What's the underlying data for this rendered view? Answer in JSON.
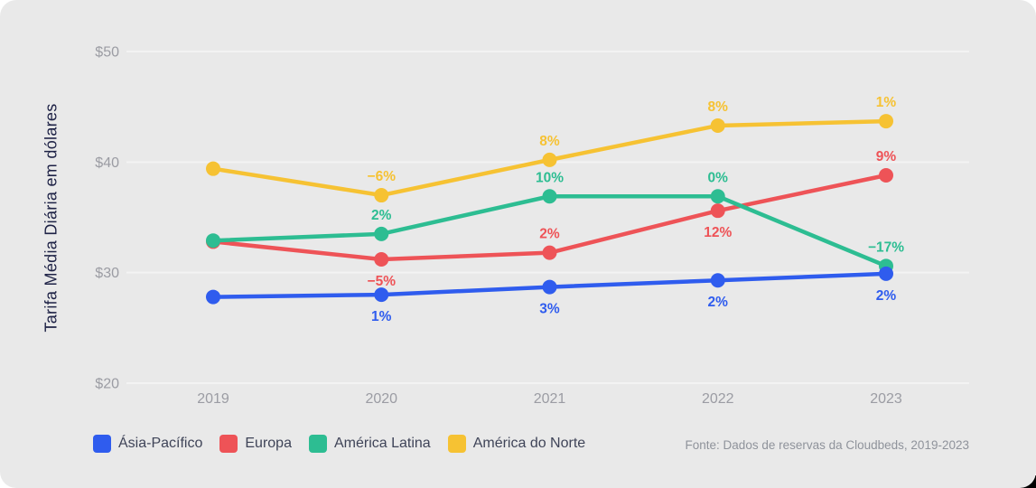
{
  "chart_data": {
    "type": "line",
    "ylabel": "Tarifa Média Diária em dólares",
    "source_note": "Fonte: Dados de reservas da Cloudbeds, 2019-2023",
    "categories": [
      "2019",
      "2020",
      "2021",
      "2022",
      "2023"
    ],
    "ylim": [
      20,
      50
    ],
    "grid": true,
    "legend_position": "bottom",
    "y_ticks": [
      {
        "label": "$50",
        "value": 50
      },
      {
        "label": "$40",
        "value": 40
      },
      {
        "label": "$30",
        "value": 30
      },
      {
        "label": "$20",
        "value": 20
      }
    ],
    "series": [
      {
        "name": "Ásia-Pacífico",
        "color": "#2f5cee",
        "values": [
          27.8,
          28.0,
          28.7,
          29.3,
          29.9
        ],
        "point_labels": [
          null,
          "1%",
          "3%",
          "2%",
          "2%"
        ],
        "label_positions": [
          null,
          "below",
          "below",
          "below",
          "below"
        ]
      },
      {
        "name": "Europa",
        "color": "#ee5357",
        "values": [
          32.8,
          31.2,
          31.8,
          35.6,
          38.8
        ],
        "point_labels": [
          null,
          "−5%",
          "2%",
          "12%",
          "9%"
        ],
        "label_positions": [
          null,
          "below",
          "above",
          "below",
          "above"
        ]
      },
      {
        "name": "América Latina",
        "color": "#2dbd92",
        "values": [
          32.9,
          33.5,
          36.9,
          36.9,
          30.6
        ],
        "point_labels": [
          null,
          "2%",
          "10%",
          "0%",
          "−17%"
        ],
        "label_positions": [
          null,
          "above",
          "above",
          "above",
          "above"
        ]
      },
      {
        "name": "América do Norte",
        "color": "#f6c233",
        "values": [
          39.4,
          37.0,
          40.2,
          43.3,
          43.7
        ],
        "point_labels": [
          null,
          "−6%",
          "8%",
          "8%",
          "1%"
        ],
        "label_positions": [
          null,
          "above",
          "above",
          "above",
          "above"
        ]
      }
    ],
    "style": {
      "card_bg": "#e9e9e9",
      "grid_color": "#f3f3f3",
      "tick_color": "#9b9ca3",
      "axis_title_color": "#1d2145",
      "legend_text_color": "#3f4458",
      "source_text_color": "#8f939b"
    }
  }
}
